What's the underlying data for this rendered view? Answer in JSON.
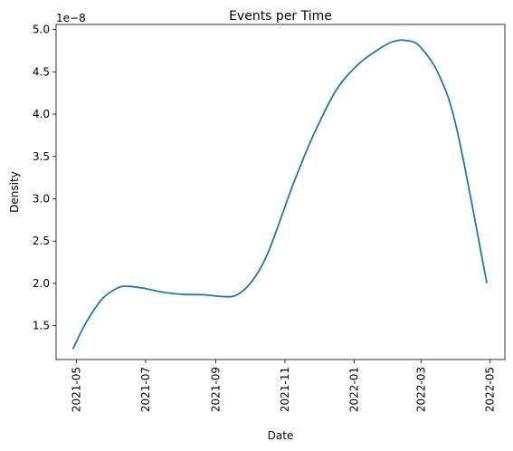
{
  "chart_data": {
    "type": "line",
    "title": "Events per Time",
    "xlabel": "Date",
    "ylabel": "Density",
    "y_multiplier_label": "1e−8",
    "xlim": [
      "2021-04-13",
      "2022-05-14"
    ],
    "ylim": [
      1.1,
      5.06
    ],
    "x_ticks": [
      "2021-05",
      "2021-07",
      "2021-09",
      "2021-11",
      "2022-01",
      "2022-03",
      "2022-05"
    ],
    "y_ticks": [
      "1.5",
      "2.0",
      "2.5",
      "3.0",
      "3.5",
      "4.0",
      "4.5",
      "5.0"
    ],
    "grid": false,
    "series": [
      {
        "color": "#1f77b4",
        "x": [
          "2021-04-28",
          "2021-05-10",
          "2021-05-24",
          "2021-06-07",
          "2021-06-16",
          "2021-06-28",
          "2021-07-17",
          "2021-08-03",
          "2021-08-22",
          "2021-09-06",
          "2021-09-19",
          "2021-10-02",
          "2021-10-15",
          "2021-10-27",
          "2021-11-09",
          "2021-11-26",
          "2021-12-16",
          "2022-01-04",
          "2022-01-23",
          "2022-02-05",
          "2022-02-16",
          "2022-02-28",
          "2022-03-17",
          "2022-04-02",
          "2022-04-28"
        ],
        "y": [
          1.23,
          1.55,
          1.82,
          1.95,
          1.965,
          1.945,
          1.895,
          1.87,
          1.865,
          1.845,
          1.86,
          2.01,
          2.3,
          2.72,
          3.2,
          3.75,
          4.28,
          4.58,
          4.77,
          4.86,
          4.87,
          4.8,
          4.46,
          3.8,
          2.01
        ]
      }
    ]
  }
}
